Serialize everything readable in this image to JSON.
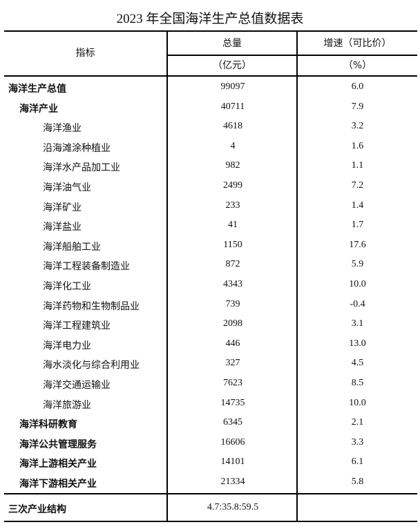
{
  "title": "2023 年全国海洋生产总值数据表",
  "header": {
    "indicator": "指标",
    "total": "总量",
    "total_unit": "（亿元）",
    "growth": "增速（可比价）",
    "growth_unit": "（%）"
  },
  "rows": [
    {
      "label": "海洋生产总值",
      "level": 0,
      "total": "99097",
      "growth": "6.0"
    },
    {
      "label": "海洋产业",
      "level": 1,
      "total": "40711",
      "growth": "7.9"
    },
    {
      "label": "海洋渔业",
      "level": 2,
      "total": "4618",
      "growth": "3.2"
    },
    {
      "label": "沿海滩涂种植业",
      "level": 2,
      "total": "4",
      "growth": "1.6"
    },
    {
      "label": "海洋水产品加工业",
      "level": 2,
      "total": "982",
      "growth": "1.1"
    },
    {
      "label": "海洋油气业",
      "level": 2,
      "total": "2499",
      "growth": "7.2"
    },
    {
      "label": "海洋矿业",
      "level": 2,
      "total": "233",
      "growth": "1.4"
    },
    {
      "label": "海洋盐业",
      "level": 2,
      "total": "41",
      "growth": "1.7"
    },
    {
      "label": "海洋船舶工业",
      "level": 2,
      "total": "1150",
      "growth": "17.6"
    },
    {
      "label": "海洋工程装备制造业",
      "level": 2,
      "total": "872",
      "growth": "5.9"
    },
    {
      "label": "海洋化工业",
      "level": 2,
      "total": "4343",
      "growth": "10.0"
    },
    {
      "label": "海洋药物和生物制品业",
      "level": 2,
      "total": "739",
      "growth": "-0.4"
    },
    {
      "label": "海洋工程建筑业",
      "level": 2,
      "total": "2098",
      "growth": "3.1"
    },
    {
      "label": "海洋电力业",
      "level": 2,
      "total": "446",
      "growth": "13.0"
    },
    {
      "label": "海水淡化与综合利用业",
      "level": 2,
      "total": "327",
      "growth": "4.5"
    },
    {
      "label": "海洋交通运输业",
      "level": 2,
      "total": "7623",
      "growth": "8.5"
    },
    {
      "label": "海洋旅游业",
      "level": 2,
      "total": "14735",
      "growth": "10.0"
    },
    {
      "label": "海洋科研教育",
      "level": 1,
      "total": "6345",
      "growth": "2.1"
    },
    {
      "label": "海洋公共管理服务",
      "level": 1,
      "total": "16606",
      "growth": "3.3"
    },
    {
      "label": "海洋上游相关产业",
      "level": 1,
      "total": "14101",
      "growth": "6.1"
    },
    {
      "label": "海洋下游相关产业",
      "level": 1,
      "total": "21334",
      "growth": "5.8"
    }
  ],
  "structure": {
    "label": "三次产业结构",
    "total": "4.7:35.8:59.5",
    "growth": ""
  }
}
